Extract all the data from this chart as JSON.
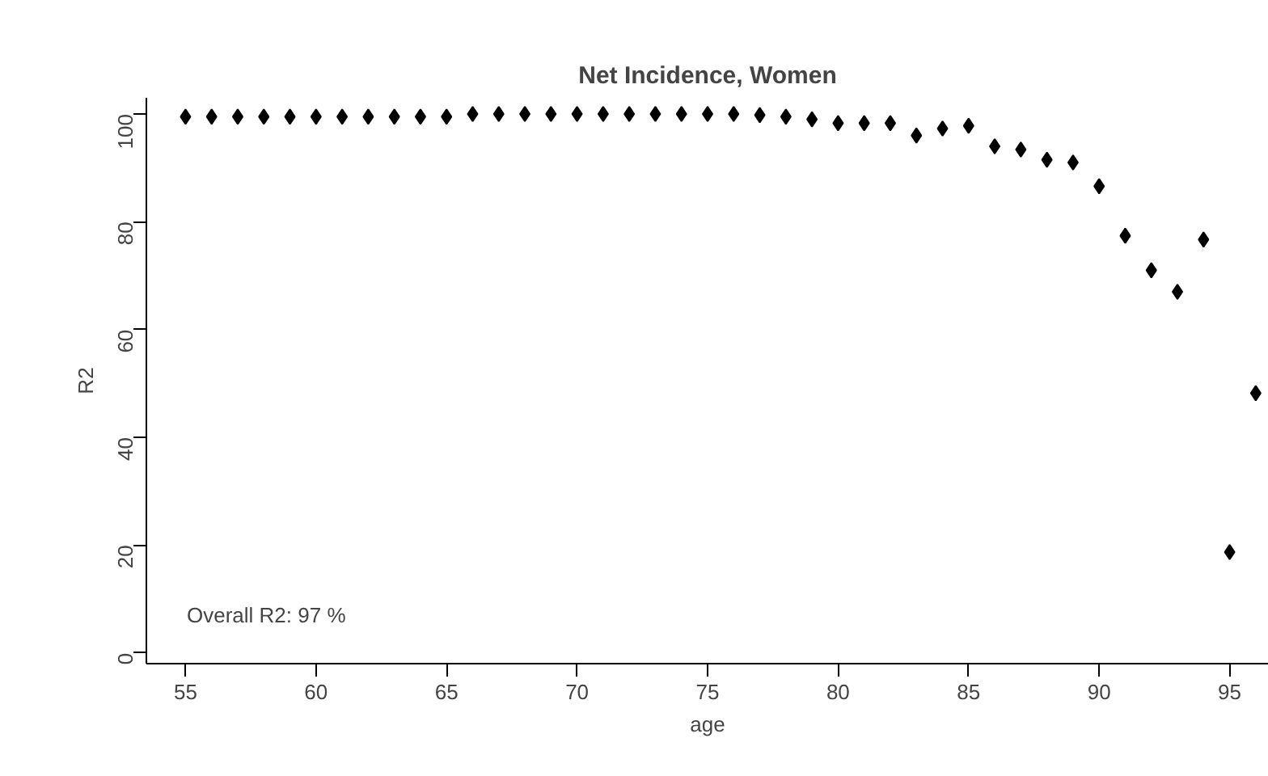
{
  "chart_data": {
    "type": "scatter",
    "title": "Net Incidence, Women",
    "xlabel": "age",
    "ylabel": "R2",
    "x": [
      55,
      56,
      57,
      58,
      59,
      60,
      61,
      62,
      63,
      64,
      65,
      66,
      67,
      68,
      69,
      70,
      71,
      72,
      73,
      74,
      75,
      76,
      77,
      78,
      79,
      80,
      81,
      82,
      83,
      84,
      85,
      86,
      87,
      88,
      89,
      90,
      91,
      92,
      93,
      94,
      95,
      96
    ],
    "series": [
      {
        "color": "#000000",
        "values": [
          99.5,
          99.5,
          99.5,
          99.5,
          99.5,
          99.5,
          99.5,
          99.5,
          99.5,
          99.5,
          99.5,
          100,
          100,
          100,
          100,
          100,
          100,
          100,
          100,
          100,
          100,
          100,
          99.8,
          99.5,
          99,
          98.3,
          98.3,
          98.3,
          96,
          97.3,
          97.8,
          94,
          93.4,
          91.5,
          91,
          86.6,
          77.4,
          71,
          67,
          76.7,
          18.7,
          48.2
        ]
      }
    ],
    "xlim": [
      53.5,
      96.5
    ],
    "ylim": [
      -2,
      103
    ],
    "xticks": [
      55,
      60,
      65,
      70,
      75,
      80,
      85,
      90,
      95
    ],
    "yticks": [
      0,
      20,
      40,
      60,
      80,
      100
    ],
    "marker": "diamond",
    "grid": false,
    "annotations": [
      "Overall R2:  97 %"
    ]
  }
}
